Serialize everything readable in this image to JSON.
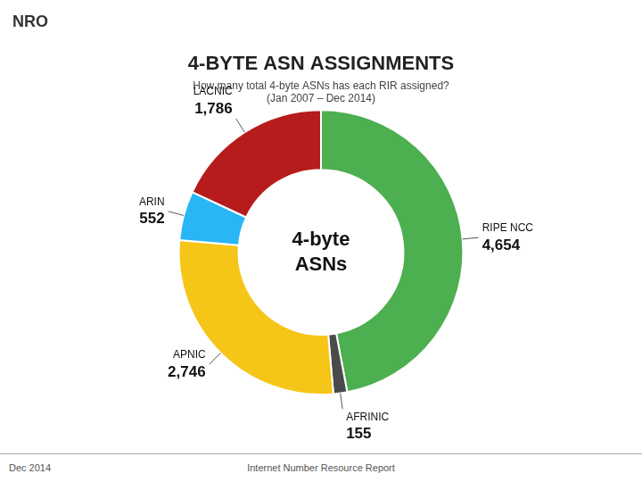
{
  "chart_data": {
    "type": "doughnut",
    "title": "4-BYTE ASN ASSIGNMENTS",
    "subtitle": [
      "How many total 4-byte ASNs has each RIR assigned?",
      "(Jan 2007 – Dec 2014)"
    ],
    "logo_text": "NRO",
    "center_text": [
      "4-byte",
      "ASNs"
    ],
    "footer": [
      "Dec 2014",
      "Internet Number Resource Report"
    ],
    "categories": [
      "RIPE NCC",
      "AFRINIC",
      "APNIC",
      "ARIN",
      "LACNIC"
    ],
    "values": [
      4654,
      155,
      2746,
      552,
      1786
    ],
    "value_labels": [
      "4,654",
      "155",
      "2,746",
      "552",
      "1,786"
    ],
    "colors": [
      "#4CAF50",
      "#4A4A4A",
      "#F5C518",
      "#29B6F6",
      "#B71C1C"
    ],
    "data_labels": true,
    "legend": false
  }
}
